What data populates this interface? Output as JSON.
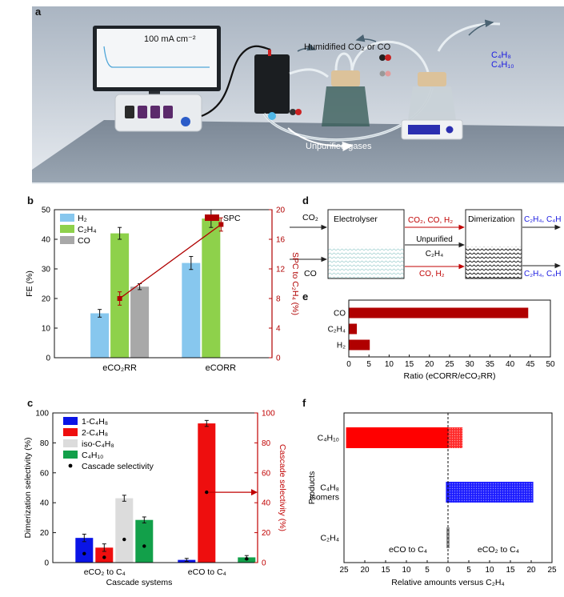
{
  "panel_labels": {
    "a": "a",
    "b": "b",
    "c": "c",
    "d": "d",
    "e": "e",
    "f": "f"
  },
  "illustration": {
    "monitor_text": "100 mA cm⁻²",
    "feed_label": "Humidified CO₂ or CO",
    "gas_label": "Unpurified gases",
    "product_line1": "C₄H₈",
    "product_line2": "C₄H₁₀"
  },
  "diagram": {
    "in_top": "CO₂",
    "in_bottom": "CO",
    "box1": "Electrolyser",
    "box2": "Dimerization",
    "mid_top": "CO₂, CO, H₂",
    "mid_center1": "Unpurified",
    "mid_center2": "C₂H₄",
    "mid_bottom": "CO, H₂",
    "out_top": "C₂H₄, C₄H",
    "out_bottom": "C₂H₄, C₄H"
  },
  "chart_data": [
    {
      "panel": "b",
      "type": "bar",
      "categories": [
        "eCO₂RR",
        "eCORR"
      ],
      "series": [
        {
          "name": "H₂",
          "values": [
            15,
            32
          ],
          "errors": [
            1.3,
            2.2
          ],
          "color": "#87c7ee"
        },
        {
          "name": "C₂H₄",
          "values": [
            42,
            47
          ],
          "errors": [
            2,
            3
          ],
          "color": "#8ed14b"
        },
        {
          "name": "CO",
          "values": [
            24,
            null
          ],
          "errors": [
            1,
            null
          ],
          "color": "#a8a8a8"
        }
      ],
      "secondary_line": {
        "name": "SPC",
        "values": [
          8,
          18
        ],
        "errors": [
          0.9,
          0.9
        ],
        "color": "#b00000"
      },
      "ylabel": "FE (%)",
      "ylim": [
        0,
        50
      ],
      "yticks": [
        0,
        10,
        20,
        30,
        40,
        50
      ],
      "y2label": "SPC to C₂H₄ (%)",
      "y2lim": [
        0,
        20
      ],
      "y2ticks": [
        0,
        4,
        8,
        12,
        16,
        20
      ]
    },
    {
      "panel": "e",
      "type": "bar",
      "orientation": "horizontal",
      "categories": [
        "CO",
        "C₂H₄",
        "H₂"
      ],
      "values": [
        44.5,
        2,
        5.2
      ],
      "color": "#b00000",
      "xlabel": "Ratio (eCORR/eCO₂RR)",
      "xlim": [
        0,
        50
      ],
      "xticks": [
        0,
        5,
        10,
        15,
        20,
        25,
        30,
        35,
        40,
        45,
        50
      ]
    },
    {
      "panel": "c",
      "type": "bar",
      "categories": [
        "eCO₂ to C₄",
        "eCO to C₄"
      ],
      "series": [
        {
          "name": "1-C₄H₈",
          "values": [
            16.5,
            1.8
          ],
          "errors": [
            2.5,
            1
          ],
          "color": "#0a14e6"
        },
        {
          "name": "2-C₄H₈",
          "values": [
            10,
            93
          ],
          "errors": [
            2.5,
            2
          ],
          "color": "#ee0e0e"
        },
        {
          "name": "iso-C₄H₈",
          "values": [
            43,
            null
          ],
          "errors": [
            2,
            null
          ],
          "color": "#dcdcdc"
        },
        {
          "name": "C₄H₁₀",
          "values": [
            28.5,
            3.5
          ],
          "errors": [
            2,
            1.2
          ],
          "color": "#12a04a"
        }
      ],
      "legend": [
        "1-C₄H₈",
        "2-C₄H₈",
        "iso-C₄H₈",
        "C₄H₁₀",
        "Cascade selectivity"
      ],
      "scatter": {
        "name": "Cascade selectivity",
        "values": [
          [
            6,
            3.5,
            15.5,
            11
          ],
          [
            null,
            47,
            null,
            2.5
          ]
        ]
      },
      "ylabel": "Dimerization selectivity (%)",
      "ylim": [
        0,
        100
      ],
      "yticks": [
        0,
        20,
        40,
        60,
        80,
        100
      ],
      "y2label": "Cascade selectivity (%)",
      "y2lim": [
        0,
        100
      ],
      "y2ticks": [
        0,
        20,
        40,
        60,
        80,
        100
      ],
      "xlabel": "Cascade systems"
    },
    {
      "panel": "f",
      "type": "bar",
      "orientation": "horizontal",
      "categories": [
        "C₄H₁₀",
        "C₄H₈ isomers",
        "C₂H₄"
      ],
      "series": [
        {
          "name": "eCO to C₄",
          "values": [
            24.5,
            0.5,
            0.4
          ],
          "colors": [
            "#ff0000",
            "#1c1cff",
            "#9a9a9a"
          ]
        },
        {
          "name": "eCO₂ to C₄",
          "values": [
            3.5,
            20.5,
            0.4
          ],
          "colors": [
            "#ff0000",
            "#1c1cff",
            "#9a9a9a"
          ]
        }
      ],
      "ylabel": "Products",
      "xlabel": "Relative amounts versus C₂H₄",
      "xtick_labels": [
        "25",
        "20",
        "15",
        "10",
        "5",
        "0",
        "5",
        "10",
        "15",
        "20",
        "25"
      ],
      "annotation_left": "eCO to C₄",
      "annotation_right": "eCO₂ to C₄"
    }
  ]
}
